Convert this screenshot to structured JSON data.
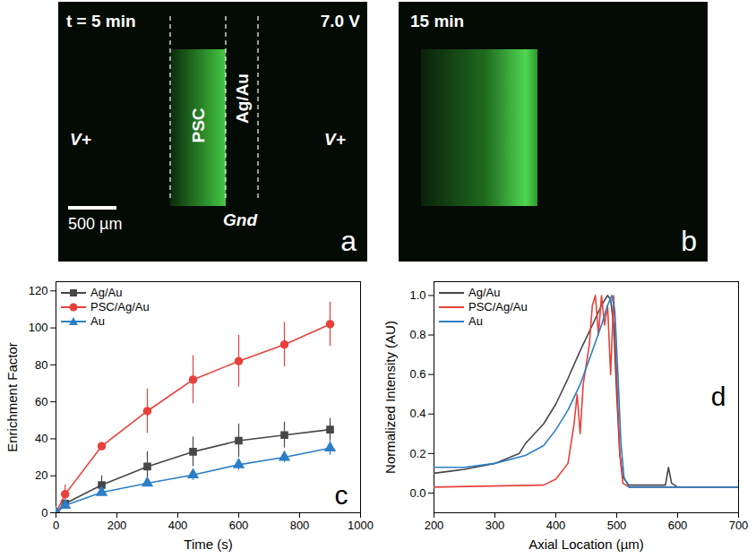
{
  "images": [
    {
      "panel": "a",
      "time": "t = 5 min",
      "voltage": "7.0 V",
      "regions": [
        "PSC",
        "Ag/Au"
      ],
      "electrodes": [
        "V+",
        "Gnd",
        "V+"
      ],
      "scale_bar": "500 µm"
    },
    {
      "panel": "b",
      "time": "15 min"
    }
  ],
  "chart_data": [
    {
      "type": "line",
      "panel": "c",
      "x_label": "Time (s)",
      "y_label": "Enrichment Factor",
      "x": [
        0,
        30,
        150,
        300,
        450,
        600,
        750,
        900
      ],
      "series": [
        {
          "name": "Ag/Au",
          "color": "#474747",
          "marker": "square",
          "values": [
            0,
            5,
            15,
            25,
            33,
            39,
            42,
            45
          ],
          "error": [
            0,
            1,
            5,
            8,
            8,
            9,
            7,
            6
          ]
        },
        {
          "name": "PSC/Ag/Au",
          "color": "#e8413c",
          "marker": "circle",
          "values": [
            0,
            10,
            36,
            55,
            72,
            82,
            91,
            102
          ],
          "error": [
            0,
            5,
            2,
            12,
            13,
            14,
            12,
            12
          ]
        },
        {
          "name": "Au",
          "color": "#2c7fc7",
          "marker": "triangle",
          "values": [
            0,
            4,
            11,
            16,
            20.5,
            26,
            30,
            35
          ],
          "error": [
            0,
            1,
            1,
            2,
            3,
            3,
            3,
            4
          ]
        }
      ],
      "xlim": [
        0,
        1000
      ],
      "xticks": [
        0,
        200,
        400,
        600,
        800,
        1000
      ],
      "ylim": [
        0,
        125
      ],
      "yticks": [
        0,
        20,
        40,
        60,
        80,
        100,
        120
      ],
      "legend": "top-left"
    },
    {
      "type": "line",
      "panel": "d",
      "x_label": "Axial Location (µm)",
      "y_label": "Normalized Intensity (AU)",
      "series": [
        {
          "name": "Ag/Au",
          "color": "#474747",
          "x": [
            200,
            250,
            300,
            340,
            350,
            380,
            400,
            420,
            440,
            460,
            475,
            485,
            490,
            495,
            500,
            505,
            510,
            520,
            580,
            585,
            590,
            600,
            700
          ],
          "values": [
            0.1,
            0.12,
            0.15,
            0.2,
            0.25,
            0.35,
            0.45,
            0.58,
            0.72,
            0.85,
            0.95,
            1.0,
            0.98,
            0.85,
            0.5,
            0.2,
            0.08,
            0.04,
            0.04,
            0.13,
            0.05,
            0.03,
            0.03
          ]
        },
        {
          "name": "PSC/Ag/Au",
          "color": "#e8413c",
          "x": [
            200,
            380,
            400,
            420,
            430,
            435,
            440,
            445,
            455,
            460,
            465,
            470,
            475,
            480,
            485,
            490,
            495,
            500,
            505,
            510,
            520,
            700
          ],
          "values": [
            0.03,
            0.04,
            0.07,
            0.15,
            0.35,
            0.5,
            0.3,
            0.55,
            0.75,
            0.95,
            1.0,
            0.8,
            1.0,
            0.85,
            0.95,
            0.6,
            1.0,
            0.6,
            0.2,
            0.05,
            0.03,
            0.03
          ]
        },
        {
          "name": "Au",
          "color": "#2c7fc7",
          "x": [
            200,
            250,
            300,
            350,
            380,
            400,
            420,
            440,
            460,
            475,
            485,
            492,
            497,
            502,
            507,
            512,
            520,
            700
          ],
          "values": [
            0.13,
            0.13,
            0.15,
            0.19,
            0.24,
            0.32,
            0.42,
            0.55,
            0.72,
            0.85,
            0.95,
            1.0,
            0.92,
            0.6,
            0.25,
            0.08,
            0.03,
            0.03
          ]
        }
      ],
      "xlim": [
        200,
        700
      ],
      "xticks": [
        200,
        300,
        400,
        500,
        600,
        700
      ],
      "ylim": [
        -0.1,
        1.07
      ],
      "yticks": [
        {
          "value": 0,
          "label": "0.0"
        },
        {
          "value": 0.2,
          "label": "0.2"
        },
        {
          "value": 0.4,
          "label": "0.4"
        },
        {
          "value": 0.6,
          "label": "0.6"
        },
        {
          "value": 0.8,
          "label": "0.8"
        },
        {
          "value": 1,
          "label": "1.0"
        }
      ],
      "legend": "top-left"
    }
  ]
}
